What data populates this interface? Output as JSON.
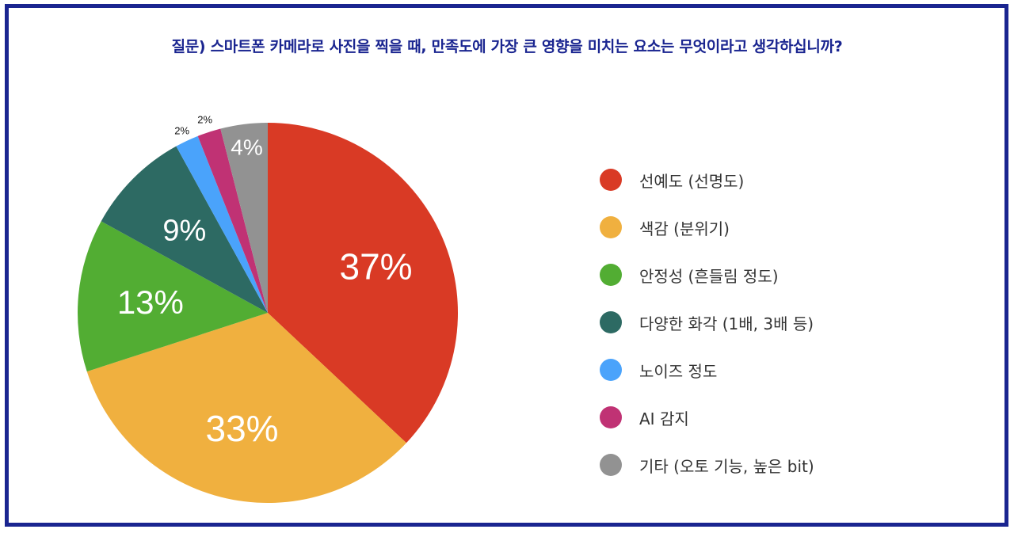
{
  "title": "질문) 스마트폰 카메라로 사진을 찍을 때, 만족도에 가장 큰 영향을 미치는 요소는 무엇이라고 생각하십니까?",
  "legend": {
    "items": [
      {
        "label": "선예도 (선명도)",
        "color": "#d93a25"
      },
      {
        "label": "색감 (분위기)",
        "color": "#f0b03f"
      },
      {
        "label": "안정성 (흔들림 정도)",
        "color": "#52ad33"
      },
      {
        "label": "다양한 화각 (1배, 3배 등)",
        "color": "#2d6a63"
      },
      {
        "label": "노이즈 정도",
        "color": "#4aa3fb"
      },
      {
        "label": "AI 감지",
        "color": "#c03274"
      },
      {
        "label": "기타 (오토 기능, 높은 bit)",
        "color": "#929292"
      }
    ]
  },
  "slice_labels": [
    "37%",
    "33%",
    "13%",
    "9%",
    "2%",
    "2%",
    "4%"
  ],
  "chart_data": {
    "type": "pie",
    "title": "질문) 스마트폰 카메라로 사진을 찍을 때, 만족도에 가장 큰 영향을 미치는 요소는 무엇이라고 생각하십니까?",
    "categories": [
      "선예도 (선명도)",
      "색감 (분위기)",
      "안정성 (흔들림 정도)",
      "다양한 화각 (1배, 3배 등)",
      "노이즈 정도",
      "AI 감지",
      "기타 (오토 기능, 높은 bit)"
    ],
    "values": [
      37,
      33,
      13,
      9,
      2,
      2,
      4
    ],
    "unit": "%",
    "colors": [
      "#d93a25",
      "#f0b03f",
      "#52ad33",
      "#2d6a63",
      "#4aa3fb",
      "#c03274",
      "#929292"
    ],
    "start_angle": "12 o'clock, clockwise",
    "legend_position": "right"
  }
}
